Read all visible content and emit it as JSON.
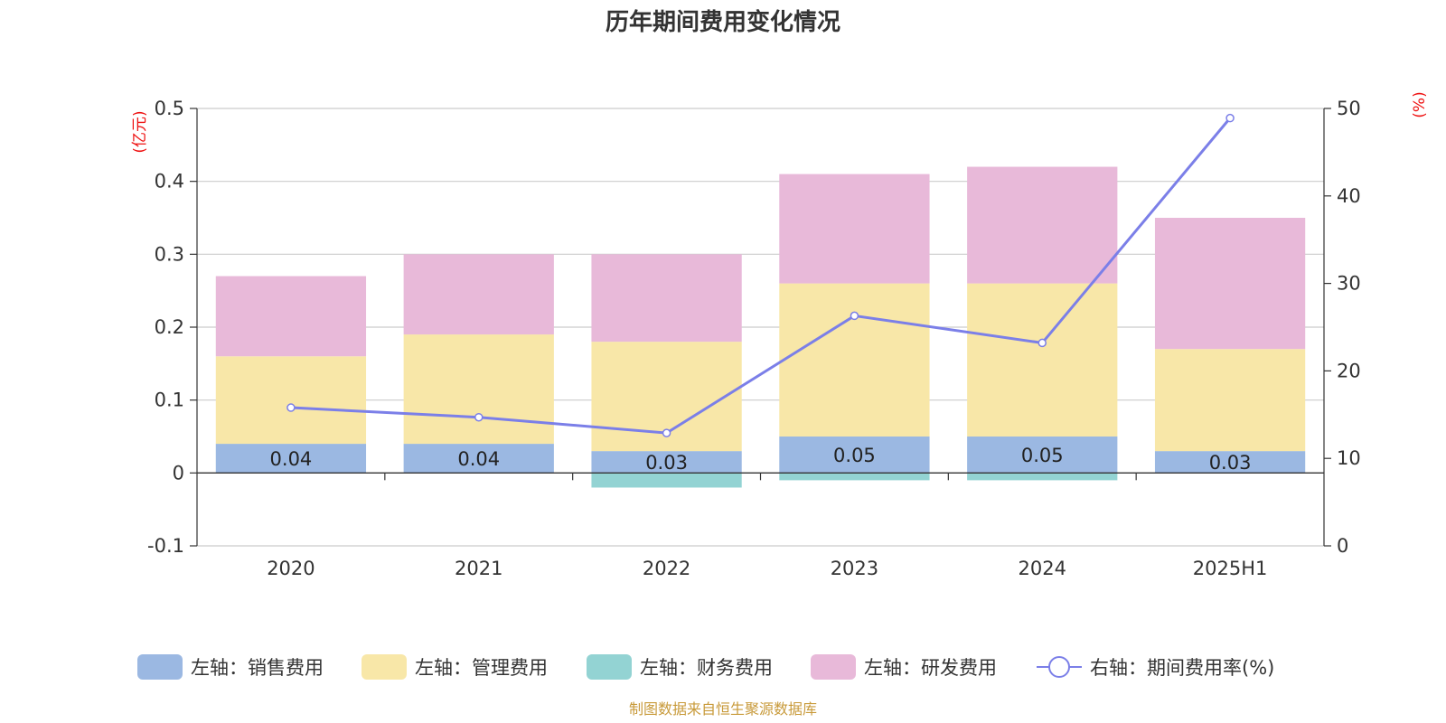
{
  "chart_data": {
    "type": "bar",
    "title": "历年期间费用变化情况",
    "categories": [
      "2020",
      "2021",
      "2022",
      "2023",
      "2024",
      "2025H1"
    ],
    "left_axis": {
      "unit": "(亿元)",
      "ylim": [
        -0.1,
        0.5
      ],
      "ticks": [
        "-0.1",
        "0",
        "0.1",
        "0.2",
        "0.3",
        "0.4",
        "0.5"
      ]
    },
    "right_axis": {
      "unit": "(%)",
      "ylim": [
        0,
        50
      ],
      "ticks": [
        "0",
        "10",
        "20",
        "30",
        "40",
        "50"
      ]
    },
    "series": [
      {
        "name": "左轴：销售费用",
        "type": "bar",
        "axis": "left",
        "color": "#9bb8e2",
        "values": [
          0.04,
          0.04,
          0.03,
          0.05,
          0.05,
          0.03
        ],
        "labels": [
          "0.04",
          "0.04",
          "0.03",
          "0.05",
          "0.05",
          "0.03"
        ]
      },
      {
        "name": "左轴：管理费用",
        "type": "bar",
        "axis": "left",
        "color": "#f8e7a8",
        "values": [
          0.12,
          0.15,
          0.15,
          0.21,
          0.21,
          0.14
        ]
      },
      {
        "name": "左轴：财务费用",
        "type": "bar",
        "axis": "left",
        "color": "#93d3d3",
        "values": [
          0,
          0,
          -0.02,
          -0.01,
          -0.01,
          0
        ]
      },
      {
        "name": "左轴：研发费用",
        "type": "bar",
        "axis": "left",
        "color": "#e8b9d9",
        "values": [
          0.11,
          0.11,
          0.12,
          0.15,
          0.16,
          0.18
        ]
      },
      {
        "name": "右轴：期间费用率(%)",
        "type": "line",
        "axis": "right",
        "color": "#7b7fe8",
        "values": [
          15.8,
          14.7,
          12.9,
          26.3,
          23.2,
          48.9
        ]
      }
    ],
    "legend_position": "bottom",
    "grid": true
  },
  "footer": {
    "source": "制图数据来自恒生聚源数据库"
  }
}
